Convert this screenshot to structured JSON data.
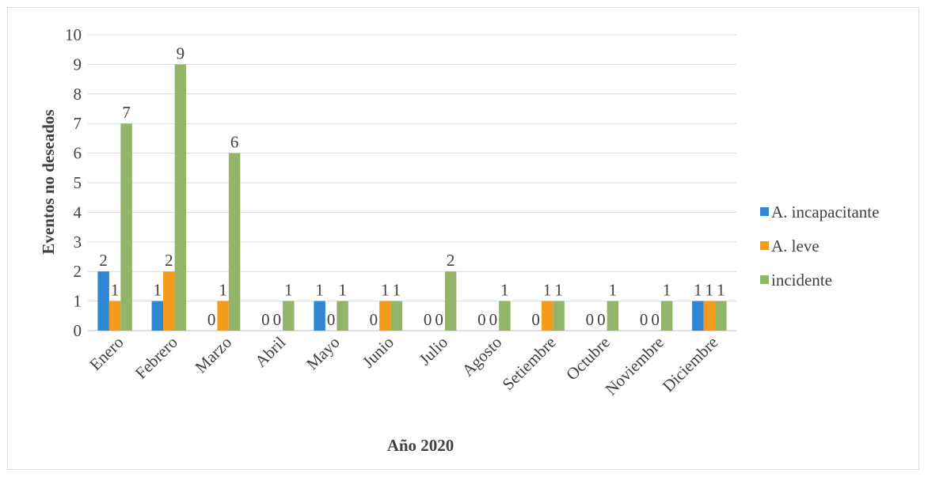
{
  "chart_data": {
    "type": "bar",
    "title": "",
    "xlabel": "Año 2020",
    "ylabel": "Eventos no deseados",
    "ylim": [
      0,
      10
    ],
    "yticks": [
      "0",
      "1",
      "2",
      "3",
      "4",
      "5",
      "6",
      "7",
      "8",
      "9",
      "10"
    ],
    "categories": [
      "Enero",
      "Febrero",
      "Marzo",
      "Abril",
      "Mayo",
      "Junio",
      "Julio",
      "Agosto",
      "Setiembre",
      "Octubre",
      "Noviembre",
      "Diciembre"
    ],
    "series": [
      {
        "name": "A. incapacitante",
        "color": "#2e86d4",
        "values": [
          2,
          1,
          0,
          0,
          1,
          0,
          0,
          0,
          0,
          0,
          0,
          1
        ],
        "labels": [
          "2",
          "1",
          "0",
          "0",
          "1",
          "0",
          "0",
          "0",
          "0",
          "0",
          "0",
          "1"
        ]
      },
      {
        "name": "A. leve",
        "color": "#f59b1c",
        "values": [
          1,
          2,
          1,
          0,
          0,
          1,
          0,
          0,
          1,
          0,
          0,
          1
        ],
        "labels": [
          "1",
          "2",
          "1",
          "0",
          "0",
          "1",
          "0",
          "0",
          "1",
          "0",
          "0",
          "1"
        ]
      },
      {
        "name": "incidente",
        "color": "#92b56a",
        "values": [
          7,
          9,
          6,
          1,
          1,
          1,
          2,
          1,
          1,
          1,
          1,
          1
        ],
        "labels": [
          "7",
          "9",
          "6",
          "1",
          "1",
          "1",
          "2",
          "1",
          "1",
          "1",
          "1",
          "1"
        ]
      }
    ],
    "grid": true,
    "legend_position": "right"
  }
}
